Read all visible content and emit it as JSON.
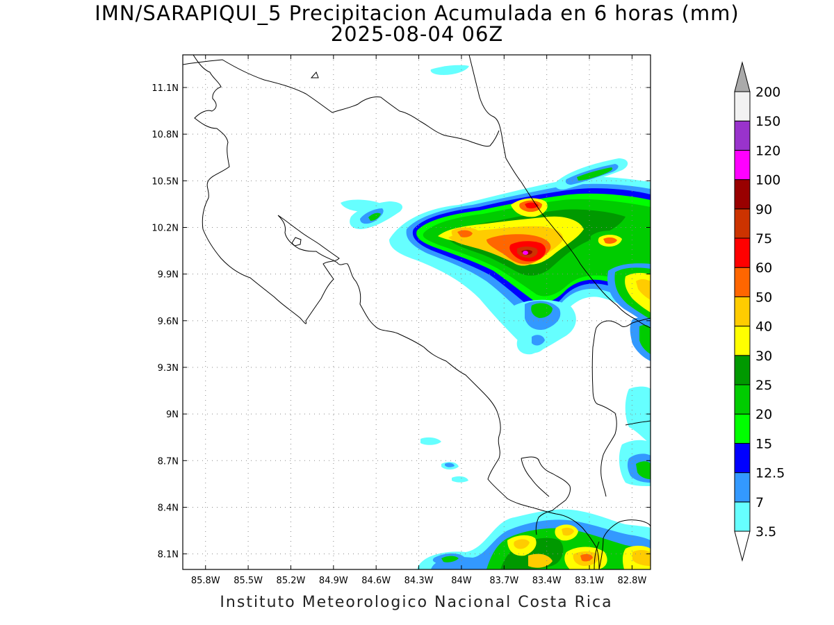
{
  "title": {
    "line1": "IMN/SARAPIQUI_5 Precipitacion Acumulada en 6 horas (mm)",
    "line2": "2025-08-04 06Z"
  },
  "footer": "Instituto Meteorologico Nacional Costa Rica",
  "map": {
    "lon_ticks": [
      "85.8W",
      "85.5W",
      "85.2W",
      "84.9W",
      "84.6W",
      "84.3W",
      "84W",
      "83.7W",
      "83.4W",
      "83.1W",
      "82.8W"
    ],
    "lon_values": [
      -85.8,
      -85.5,
      -85.2,
      -84.9,
      -84.6,
      -84.3,
      -84.0,
      -83.7,
      -83.4,
      -83.1,
      -82.8
    ],
    "lat_ticks": [
      "8.1N",
      "8.4N",
      "8.7N",
      "9N",
      "9.3N",
      "9.6N",
      "9.9N",
      "10.2N",
      "10.5N",
      "10.8N",
      "11.1N"
    ],
    "lat_values": [
      8.1,
      8.4,
      8.7,
      9.0,
      9.3,
      9.6,
      9.9,
      10.2,
      10.5,
      10.8,
      11.1
    ],
    "lon_range": [
      -85.96,
      -82.67
    ],
    "lat_range": [
      8.0,
      11.31
    ],
    "grid": "dotted"
  },
  "colorbar": {
    "labels": [
      "3.5",
      "7",
      "12.5",
      "15",
      "20",
      "25",
      "30",
      "40",
      "50",
      "60",
      "75",
      "90",
      "100",
      "120",
      "150",
      "200"
    ],
    "colors": [
      "#ffffff",
      "#66ffff",
      "#3399ff",
      "#0000ff",
      "#00ff00",
      "#00cc00",
      "#009900",
      "#ffff00",
      "#ffcc00",
      "#ff6600",
      "#ff0000",
      "#cc3300",
      "#990000",
      "#ff00ff",
      "#9933cc",
      "#f2f2f2",
      "#aaaaaa"
    ]
  }
}
